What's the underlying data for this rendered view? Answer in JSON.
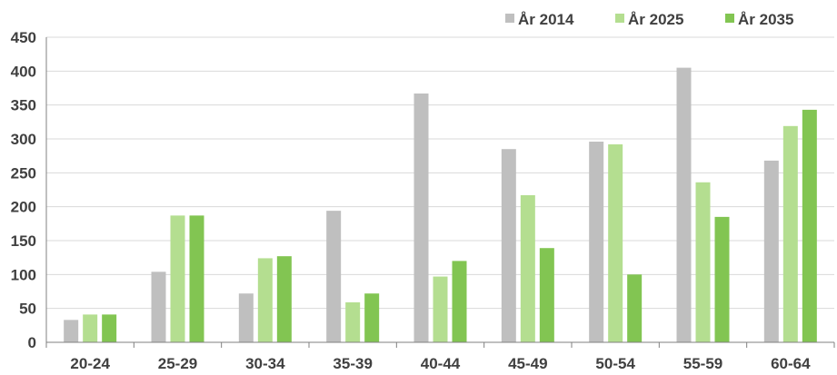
{
  "chart_data": {
    "type": "bar",
    "title": "",
    "xlabel": "",
    "ylabel": "",
    "ylim": [
      0,
      450
    ],
    "yticks": [
      0,
      50,
      100,
      150,
      200,
      250,
      300,
      350,
      400,
      450
    ],
    "grid": true,
    "legend_position": "top-right",
    "categories": [
      "20-24",
      "25-29",
      "30-34",
      "35-39",
      "40-44",
      "45-49",
      "50-54",
      "55-59",
      "60-64"
    ],
    "series": [
      {
        "name": "År 2014",
        "color": "#bfbfbf",
        "values": [
          33,
          104,
          72,
          194,
          367,
          285,
          296,
          405,
          268
        ]
      },
      {
        "name": "År 2025",
        "color": "#b4de90",
        "values": [
          41,
          187,
          124,
          59,
          97,
          217,
          292,
          236,
          319
        ]
      },
      {
        "name": "År 2035",
        "color": "#82c552",
        "values": [
          41,
          187,
          127,
          72,
          120,
          139,
          100,
          185,
          343
        ]
      }
    ]
  }
}
